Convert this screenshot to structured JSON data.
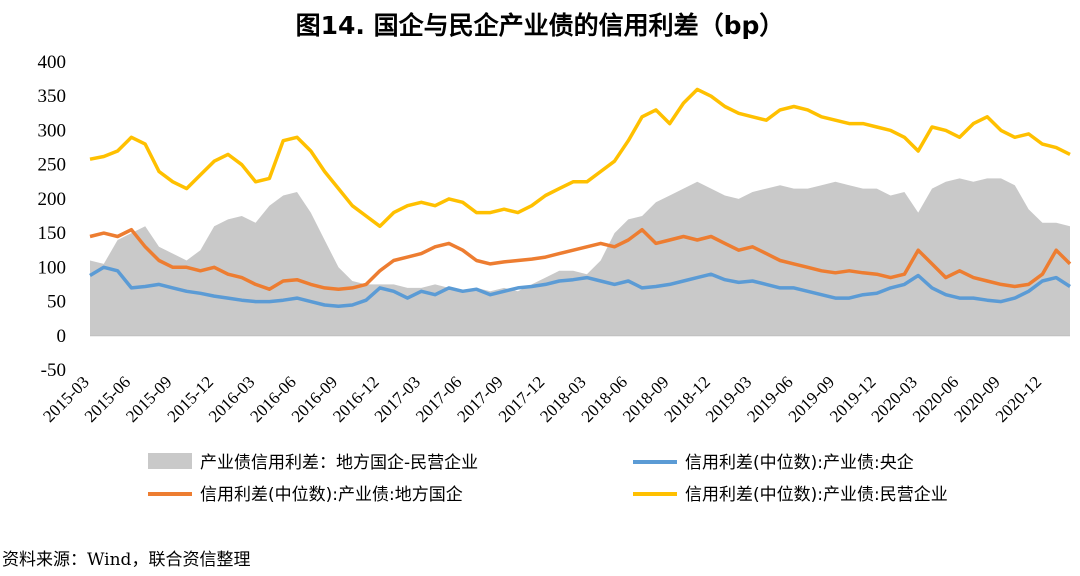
{
  "title": "图14.   国企与民企产业债的信用利差（bp）",
  "source": "资料来源：Wind，联合资信整理",
  "colors": {
    "area": "#c9c9c9",
    "central": "#5b9bd5",
    "local": "#ed7d31",
    "private": "#ffc000"
  },
  "chart_data": {
    "type": "line",
    "title": "图14.   国企与民企产业债的信用利差（bp）",
    "xlabel": "",
    "ylabel": "",
    "ylim": [
      -50,
      400
    ],
    "yticks": [
      400,
      350,
      300,
      250,
      200,
      150,
      100,
      50,
      0,
      -50
    ],
    "grid": false,
    "legend_position": "bottom",
    "x_tick_labels": [
      "2015-03",
      "2015-06",
      "2015-09",
      "2015-12",
      "2016-03",
      "2016-06",
      "2016-09",
      "2016-12",
      "2017-03",
      "2017-06",
      "2017-09",
      "2017-12",
      "2018-03",
      "2018-06",
      "2018-09",
      "2018-12",
      "2019-03",
      "2019-06",
      "2019-09",
      "2019-12",
      "2020-03",
      "2020-06",
      "2020-09",
      "2020-12"
    ],
    "x": [
      "2015-03",
      "2015-04",
      "2015-05",
      "2015-06",
      "2015-07",
      "2015-08",
      "2015-09",
      "2015-10",
      "2015-11",
      "2015-12",
      "2016-01",
      "2016-02",
      "2016-03",
      "2016-04",
      "2016-05",
      "2016-06",
      "2016-07",
      "2016-08",
      "2016-09",
      "2016-10",
      "2016-11",
      "2016-12",
      "2017-01",
      "2017-02",
      "2017-03",
      "2017-04",
      "2017-05",
      "2017-06",
      "2017-07",
      "2017-08",
      "2017-09",
      "2017-10",
      "2017-11",
      "2017-12",
      "2018-01",
      "2018-02",
      "2018-03",
      "2018-04",
      "2018-05",
      "2018-06",
      "2018-07",
      "2018-08",
      "2018-09",
      "2018-10",
      "2018-11",
      "2018-12",
      "2019-01",
      "2019-02",
      "2019-03",
      "2019-04",
      "2019-05",
      "2019-06",
      "2019-07",
      "2019-08",
      "2019-09",
      "2019-10",
      "2019-11",
      "2019-12",
      "2020-01",
      "2020-02",
      "2020-03",
      "2020-04",
      "2020-05",
      "2020-06",
      "2020-07",
      "2020-08",
      "2020-09",
      "2020-10",
      "2020-11",
      "2020-12",
      "2021-01",
      "2021-02"
    ],
    "series": [
      {
        "name": "产业债信用利差：地方国企-民营企业",
        "kind": "area",
        "values": [
          110,
          105,
          140,
          150,
          160,
          130,
          120,
          110,
          125,
          160,
          170,
          175,
          165,
          190,
          205,
          210,
          180,
          140,
          100,
          80,
          75,
          75,
          75,
          70,
          70,
          75,
          70,
          65,
          70,
          65,
          70,
          65,
          75,
          85,
          95,
          95,
          90,
          110,
          150,
          170,
          175,
          195,
          205,
          215,
          225,
          215,
          205,
          200,
          210,
          215,
          220,
          215,
          215,
          220,
          225,
          220,
          215,
          215,
          205,
          210,
          180,
          215,
          225,
          230,
          225,
          230,
          230,
          220,
          185,
          165,
          165,
          160
        ]
      },
      {
        "name": "信用利差(中位数):产业债:央企",
        "kind": "line",
        "values": [
          88,
          100,
          95,
          70,
          72,
          75,
          70,
          65,
          62,
          58,
          55,
          52,
          50,
          50,
          52,
          55,
          50,
          45,
          43,
          45,
          52,
          70,
          65,
          55,
          65,
          60,
          70,
          65,
          68,
          60,
          65,
          70,
          72,
          75,
          80,
          82,
          85,
          80,
          75,
          80,
          70,
          72,
          75,
          80,
          85,
          90,
          82,
          78,
          80,
          75,
          70,
          70,
          65,
          60,
          55,
          55,
          60,
          62,
          70,
          75,
          88,
          70,
          60,
          55,
          55,
          52,
          50,
          55,
          65,
          80,
          85,
          72
        ]
      },
      {
        "name": "信用利差(中位数):产业债:地方国企",
        "kind": "line",
        "values": [
          145,
          150,
          145,
          155,
          130,
          110,
          100,
          100,
          95,
          100,
          90,
          85,
          75,
          68,
          80,
          82,
          75,
          70,
          68,
          70,
          75,
          95,
          110,
          115,
          120,
          130,
          135,
          125,
          110,
          105,
          108,
          110,
          112,
          115,
          120,
          125,
          130,
          135,
          130,
          140,
          155,
          135,
          140,
          145,
          140,
          145,
          135,
          125,
          130,
          120,
          110,
          105,
          100,
          95,
          92,
          95,
          92,
          90,
          85,
          90,
          125,
          105,
          85,
          95,
          85,
          80,
          75,
          72,
          75,
          90,
          125,
          105
        ]
      },
      {
        "name": "信用利差(中位数):产业债:民营企业",
        "kind": "line",
        "values": [
          258,
          262,
          270,
          290,
          280,
          240,
          225,
          215,
          235,
          255,
          265,
          250,
          225,
          230,
          285,
          290,
          270,
          240,
          215,
          190,
          175,
          160,
          180,
          190,
          195,
          190,
          200,
          195,
          180,
          180,
          185,
          180,
          190,
          205,
          215,
          225,
          225,
          240,
          255,
          285,
          320,
          330,
          310,
          340,
          360,
          350,
          335,
          325,
          320,
          315,
          330,
          335,
          330,
          320,
          315,
          310,
          310,
          305,
          300,
          290,
          270,
          305,
          300,
          290,
          310,
          320,
          300,
          290,
          295,
          280,
          275,
          265
        ]
      }
    ]
  }
}
